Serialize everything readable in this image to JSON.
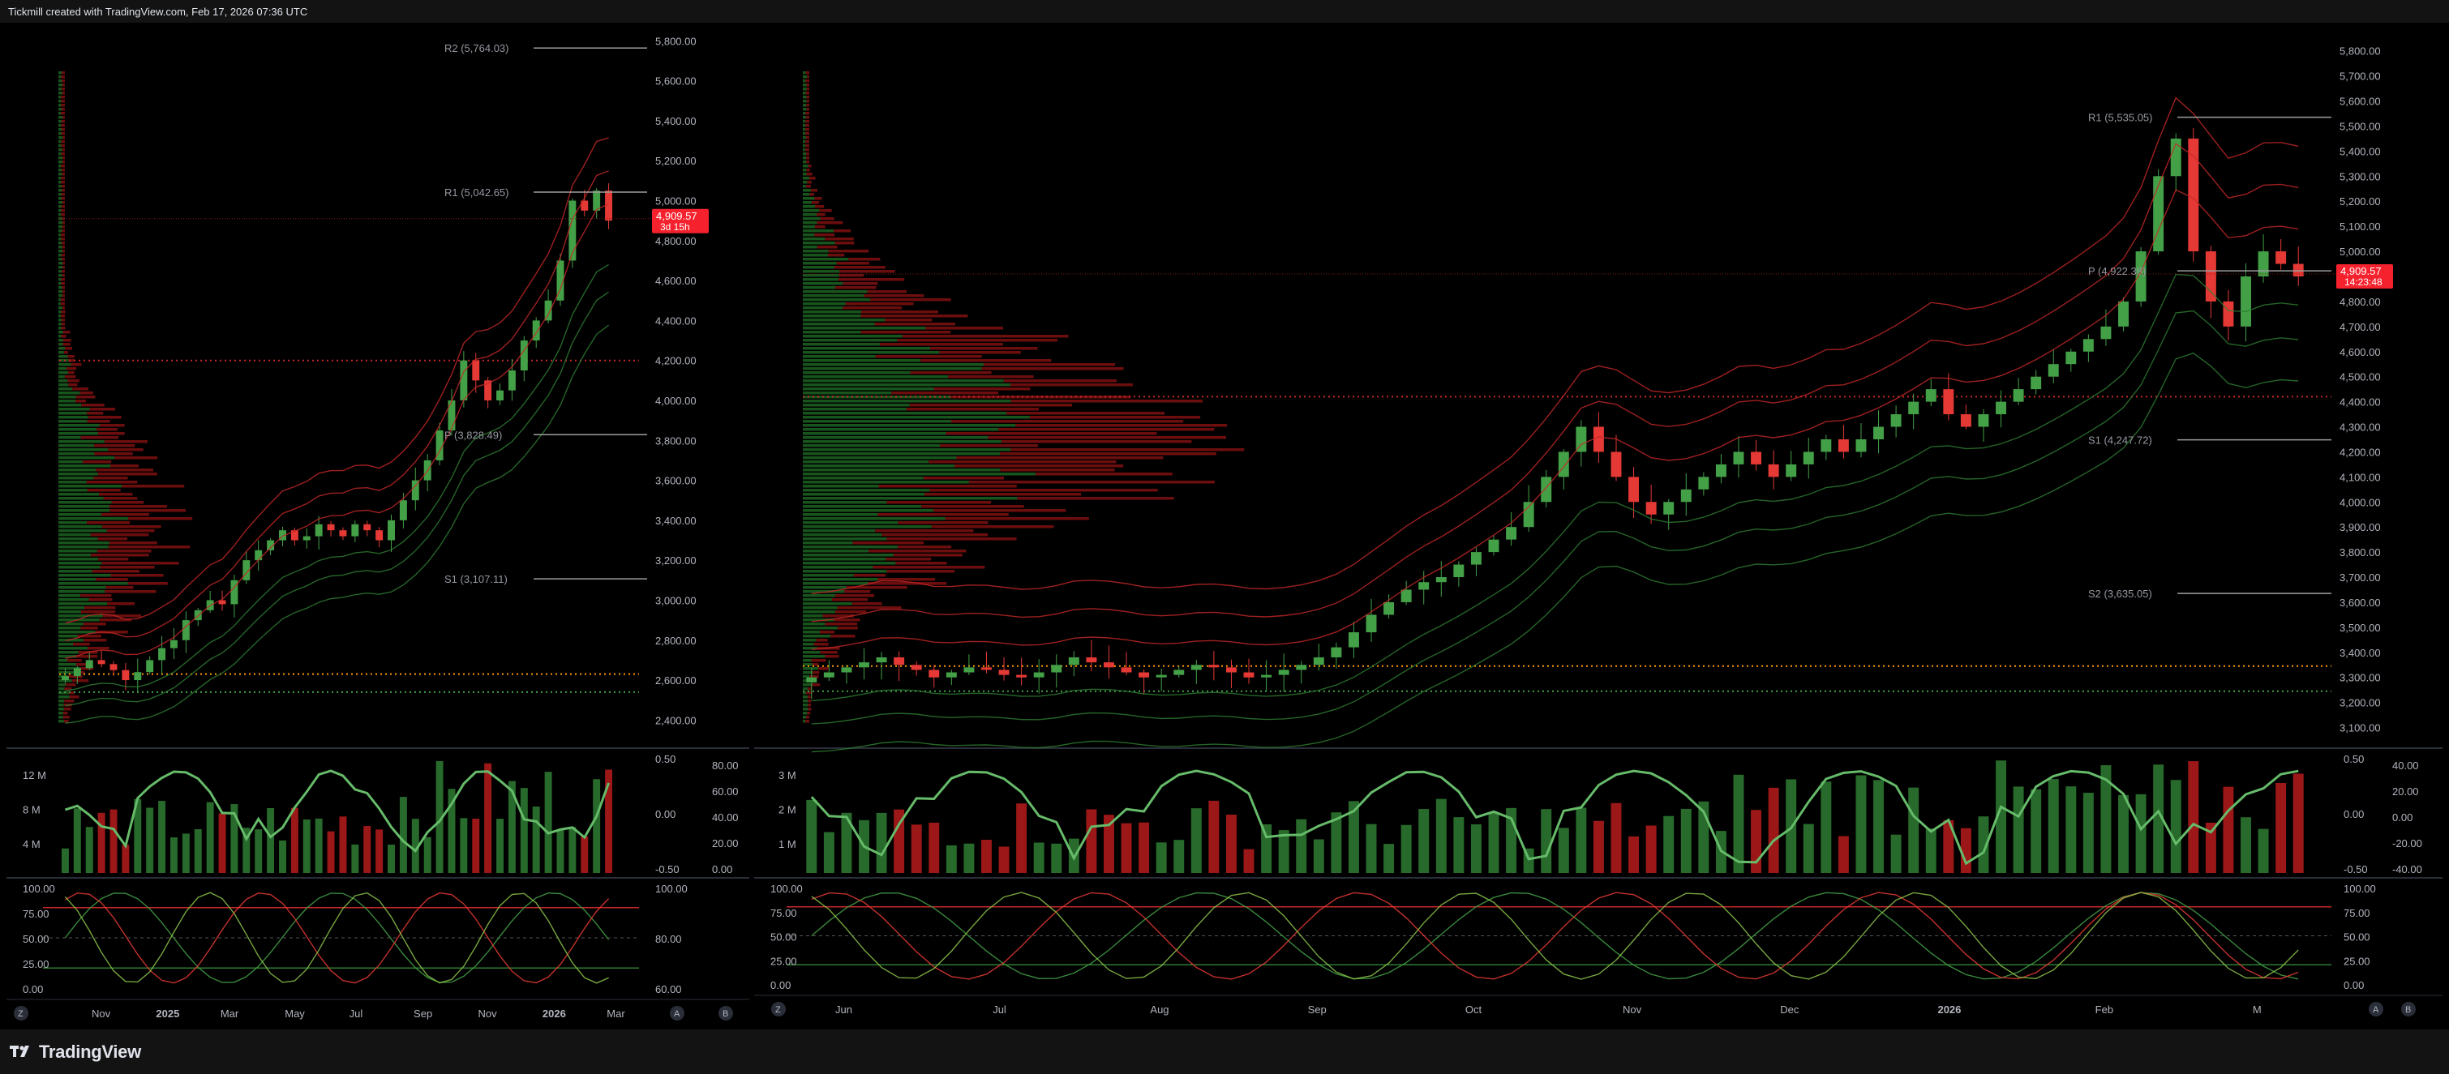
{
  "credit": "Tickmill created with TradingView.com, Feb 17, 2026 07:36 UTC",
  "brand": "TradingView",
  "colors": {
    "up": "#2e7d32",
    "down": "#d50000",
    "bg": "#000000",
    "axis_text": "#b2b5be",
    "grid_red": "#b71c1c",
    "grid_green": "#1b5e20"
  },
  "chart_data": [
    {
      "type": "candlestick",
      "panel": "left",
      "y_axis": [
        "5,800.00",
        "5,600.00",
        "5,400.00",
        "5,200.00",
        "5,000.00",
        "4,800.00",
        "4,600.00",
        "4,400.00",
        "4,200.00",
        "4,000.00",
        "3,800.00",
        "3,600.00",
        "3,400.00",
        "3,200.00",
        "3,000.00",
        "2,800.00",
        "2,600.00",
        "2,400.00"
      ],
      "x_axis": [
        "Nov",
        "2025",
        "Mar",
        "May",
        "Jul",
        "Sep",
        "Nov",
        "2026",
        "Mar"
      ],
      "ylim": [
        2300,
        5850
      ],
      "pivots": [
        {
          "label": "R2 (5,764.03)",
          "value": 5764.03
        },
        {
          "label": "R1 (5,042.65)",
          "value": 5042.65
        },
        {
          "label": "P (3,828.49)",
          "value": 3828.49
        },
        {
          "label": "S1 (3,107.11)",
          "value": 3107.11
        }
      ],
      "last_price": "4,909.57",
      "countdown": "3d 15h",
      "close": [
        2620,
        2660,
        2700,
        2680,
        2650,
        2600,
        2640,
        2700,
        2760,
        2800,
        2900,
        2950,
        3000,
        2980,
        3100,
        3200,
        3250,
        3300,
        3350,
        3300,
        3320,
        3380,
        3350,
        3320,
        3380,
        3350,
        3300,
        3400,
        3500,
        3600,
        3700,
        3850,
        4000,
        4200,
        4100,
        4000,
        4050,
        4150,
        4300,
        4400,
        4500,
        4700,
        5000,
        4950,
        5050,
        4900
      ]
    },
    {
      "type": "candlestick",
      "panel": "right",
      "y_axis": [
        "5,800.00",
        "5,700.00",
        "5,600.00",
        "5,500.00",
        "5,400.00",
        "5,300.00",
        "5,200.00",
        "5,100.00",
        "5,000.00",
        "4,900.00",
        "4,800.00",
        "4,700.00",
        "4,600.00",
        "4,500.00",
        "4,400.00",
        "4,300.00",
        "4,200.00",
        "4,100.00",
        "4,000.00",
        "3,900.00",
        "3,800.00",
        "3,700.00",
        "3,600.00",
        "3,500.00",
        "3,400.00",
        "3,300.00",
        "3,200.00",
        "3,100.00"
      ],
      "x_axis": [
        "Jun",
        "Jul",
        "Aug",
        "Sep",
        "Oct",
        "Nov",
        "Dec",
        "2026",
        "Feb",
        "M"
      ],
      "ylim": [
        3050,
        5880
      ],
      "pivots": [
        {
          "label": "R1 (5,535.05)",
          "value": 5535.05
        },
        {
          "label": "P (4,922.38)",
          "value": 4922.38
        },
        {
          "label": "S1 (4,247.72)",
          "value": 4247.72
        },
        {
          "label": "S2 (3,635.05)",
          "value": 3635.05
        }
      ],
      "last_price": "4,909.57",
      "countdown": "14:23:48",
      "close": [
        3300,
        3320,
        3340,
        3360,
        3380,
        3350,
        3330,
        3300,
        3320,
        3340,
        3330,
        3310,
        3300,
        3320,
        3350,
        3380,
        3360,
        3340,
        3320,
        3300,
        3310,
        3330,
        3350,
        3340,
        3320,
        3300,
        3310,
        3330,
        3350,
        3380,
        3420,
        3480,
        3550,
        3600,
        3650,
        3680,
        3700,
        3750,
        3800,
        3850,
        3900,
        4000,
        4100,
        4200,
        4300,
        4200,
        4100,
        4000,
        3950,
        4000,
        4050,
        4100,
        4150,
        4200,
        4150,
        4100,
        4150,
        4200,
        4250,
        4200,
        4250,
        4300,
        4350,
        4400,
        4450,
        4350,
        4300,
        4350,
        4400,
        4450,
        4500,
        4550,
        4600,
        4650,
        4700,
        4800,
        5000,
        5300,
        5450,
        5000,
        4800,
        4700,
        4900,
        5000,
        4950,
        4900
      ]
    },
    {
      "type": "volume_oscillator",
      "panel": "left-middle",
      "left_axis": [
        "12 M",
        "8 M",
        "4 M"
      ],
      "right_axis_1": [
        "0.50",
        "0.00",
        "-0.50"
      ],
      "right_axis_2": [
        "80.00",
        "60.00",
        "40.00",
        "20.00",
        "0.00"
      ]
    },
    {
      "type": "volume_oscillator",
      "panel": "right-middle",
      "left_axis": [
        "3 M",
        "2 M",
        "1 M"
      ],
      "right_axis_1": [
        "0.50",
        "0.00",
        "-0.50"
      ],
      "right_axis_2": [
        "40.00",
        "20.00",
        "0.00",
        "-20.00",
        "-40.00"
      ]
    },
    {
      "type": "stochastic",
      "panel": "left-bottom",
      "left_axis": [
        "100.00",
        "75.00",
        "50.00",
        "25.00",
        "0.00"
      ],
      "right_axis": [
        "100.00",
        "80.00",
        "60.00"
      ]
    },
    {
      "type": "stochastic",
      "panel": "right-bottom",
      "left_axis": [
        "100.00",
        "75.00",
        "50.00",
        "25.00",
        "0.00"
      ],
      "right_axis": [
        "100.00",
        "75.00",
        "50.00",
        "25.00",
        "0.00"
      ]
    }
  ],
  "axis_buttons": {
    "z": "Z",
    "a": "A",
    "b": "B"
  }
}
